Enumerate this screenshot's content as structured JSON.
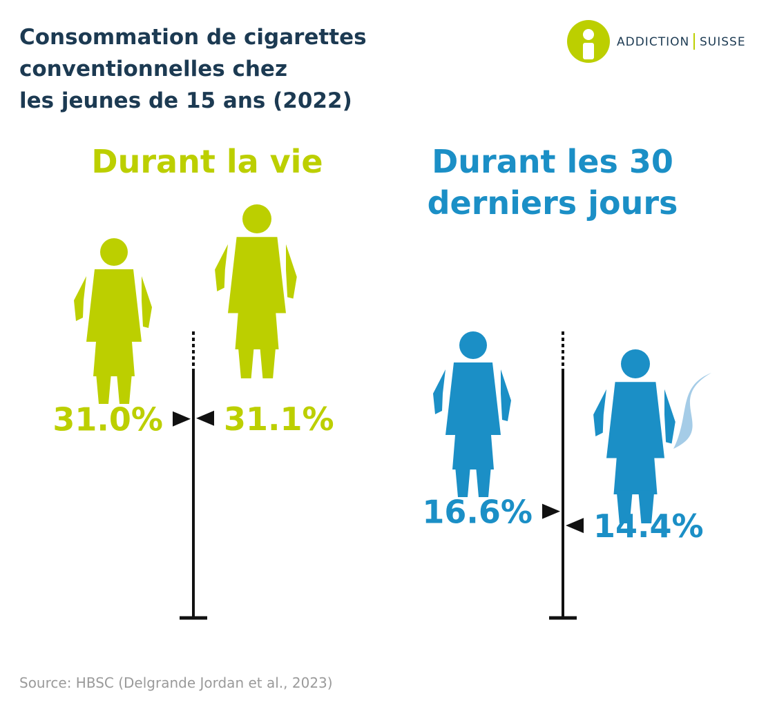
{
  "title": [
    "Consommation de cigarettes",
    "conventionnelles chez",
    "les jeunes de 15 ans (2022)"
  ],
  "logo": {
    "brand": "ADDICTION",
    "sub": "SUISSE"
  },
  "source": "Source: HBSC (Delgrande Jordan et al., 2023)",
  "chart_data": [
    {
      "type": "marker",
      "title": [
        "Durant la vie"
      ],
      "color": "#bccf00",
      "values": [
        31.0,
        31.1
      ],
      "value_labels": [
        "31.0%",
        "31.1%"
      ]
    },
    {
      "type": "marker",
      "title": [
        "Durant les 30",
        "derniers jours"
      ],
      "color": "#1b8fc6",
      "values": [
        16.6,
        14.4
      ],
      "value_labels": [
        "16.6%",
        "14.4%"
      ]
    }
  ]
}
